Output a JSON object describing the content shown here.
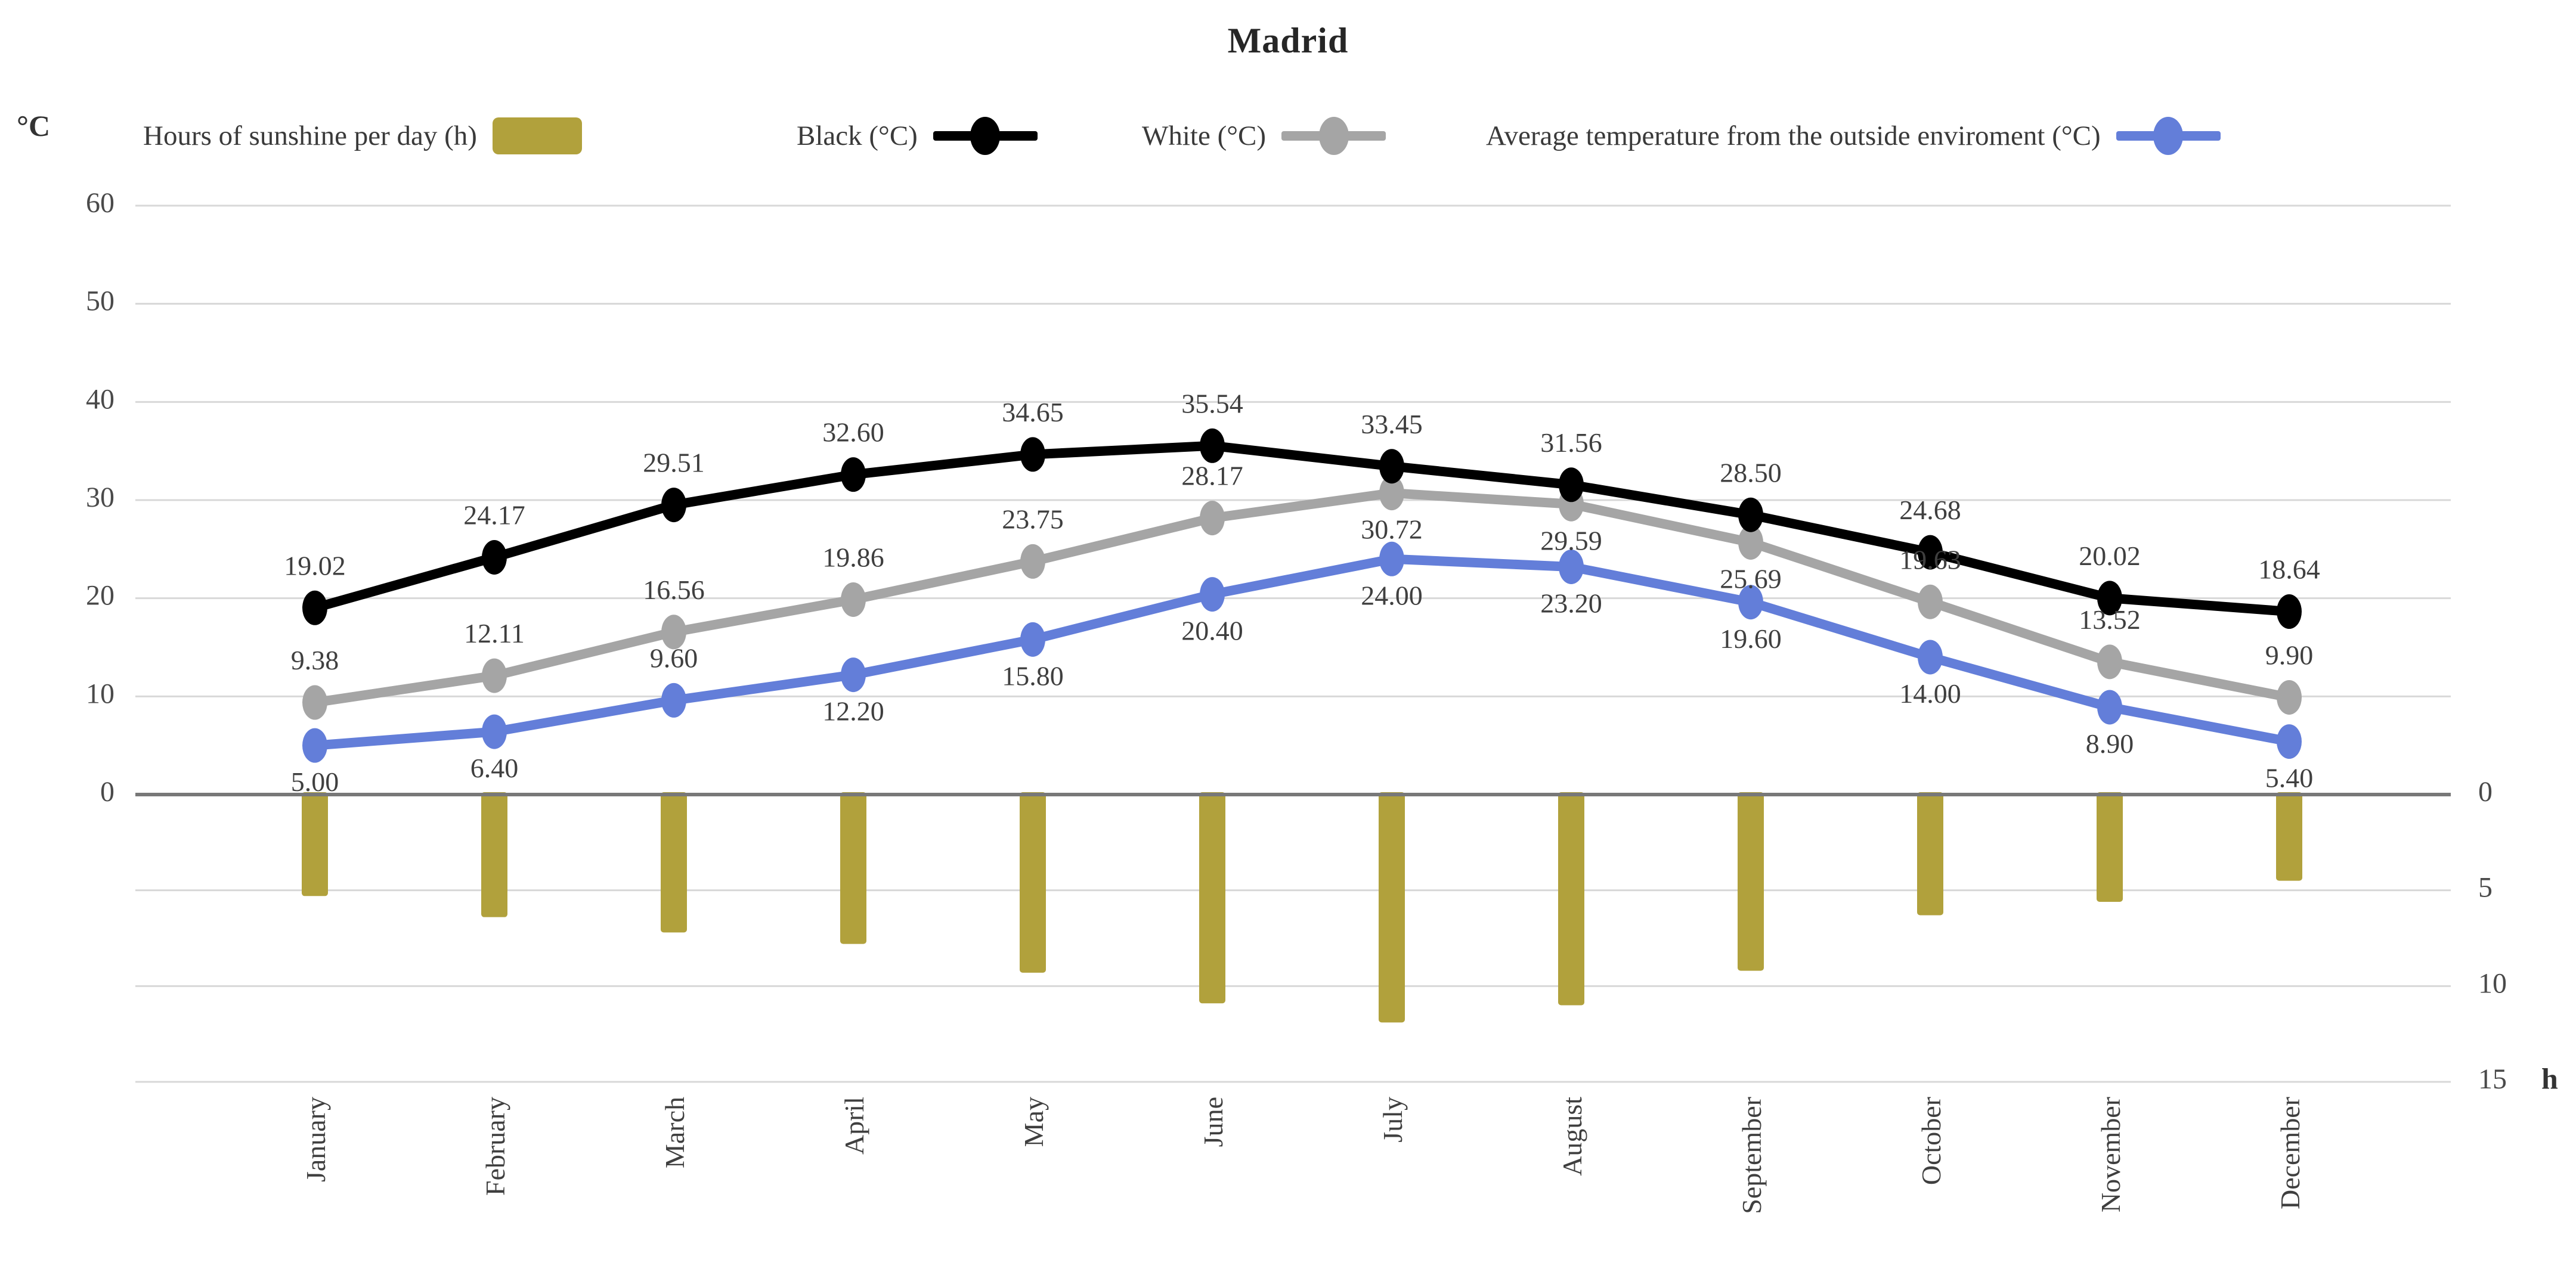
{
  "title": "Madrid",
  "chart_data": {
    "type": "combo",
    "title": "Madrid",
    "categories": [
      "January",
      "February",
      "March",
      "April",
      "May",
      "June",
      "July",
      "August",
      "September",
      "October",
      "November",
      "December"
    ],
    "series": [
      {
        "name": "Hours of sunshine per day (h)",
        "type": "bar",
        "axis": "right-hours",
        "color": "#B1A13C",
        "values": [
          5.3,
          6.4,
          7.2,
          7.8,
          9.3,
          10.9,
          11.9,
          11.0,
          9.2,
          6.3,
          5.6,
          4.5
        ],
        "data_labels": false
      },
      {
        "name": "Black (°C)",
        "type": "line",
        "axis": "left-celsius",
        "color": "#000000",
        "values": [
          19.02,
          24.17,
          29.51,
          32.6,
          34.65,
          35.54,
          33.45,
          31.56,
          28.5,
          24.68,
          20.02,
          18.64
        ],
        "data_labels": true,
        "label_sides": [
          "above",
          "above",
          "above",
          "above",
          "above",
          "above",
          "above",
          "above",
          "above",
          "above",
          "above",
          "above"
        ]
      },
      {
        "name": "White (°C)",
        "type": "line",
        "axis": "left-celsius",
        "color": "#A5A5A5",
        "values": [
          9.38,
          12.11,
          16.56,
          19.86,
          23.75,
          28.17,
          30.72,
          29.59,
          25.69,
          19.63,
          13.52,
          9.9
        ],
        "data_labels": true,
        "label_sides": [
          "above",
          "above",
          "above",
          "above",
          "above",
          "above",
          "below",
          "below",
          "below",
          "above",
          "above",
          "above"
        ]
      },
      {
        "name": "Average temperature from the outside enviroment (°C)",
        "type": "line",
        "axis": "left-celsius",
        "color": "#637ED9",
        "values": [
          5.0,
          6.4,
          9.6,
          12.2,
          15.8,
          20.4,
          24.0,
          23.2,
          19.6,
          14.0,
          8.9,
          5.4
        ],
        "data_labels": true,
        "label_sides": [
          "below",
          "below",
          "above",
          "below",
          "below",
          "below",
          "below",
          "below",
          "below",
          "below",
          "below",
          "below"
        ]
      }
    ],
    "y_axis_left": {
      "unit": "°C",
      "min": 0,
      "max": 60,
      "step": 10,
      "ticks": [
        60,
        50,
        40,
        30,
        20,
        10,
        0
      ]
    },
    "y_axis_right": {
      "unit": "h",
      "min": 0,
      "max": 15,
      "step": 5,
      "ticks": [
        0,
        5,
        10,
        15
      ],
      "direction": "down-from-zero"
    },
    "gridlines": true,
    "legend_position": "top",
    "colors": {
      "grid": "#D8D8D8",
      "zero_axis": "#787878",
      "data_label_text": "#3F3F3F",
      "tick_text": "#4A4A4A",
      "month_text": "#3F3F3F"
    }
  }
}
